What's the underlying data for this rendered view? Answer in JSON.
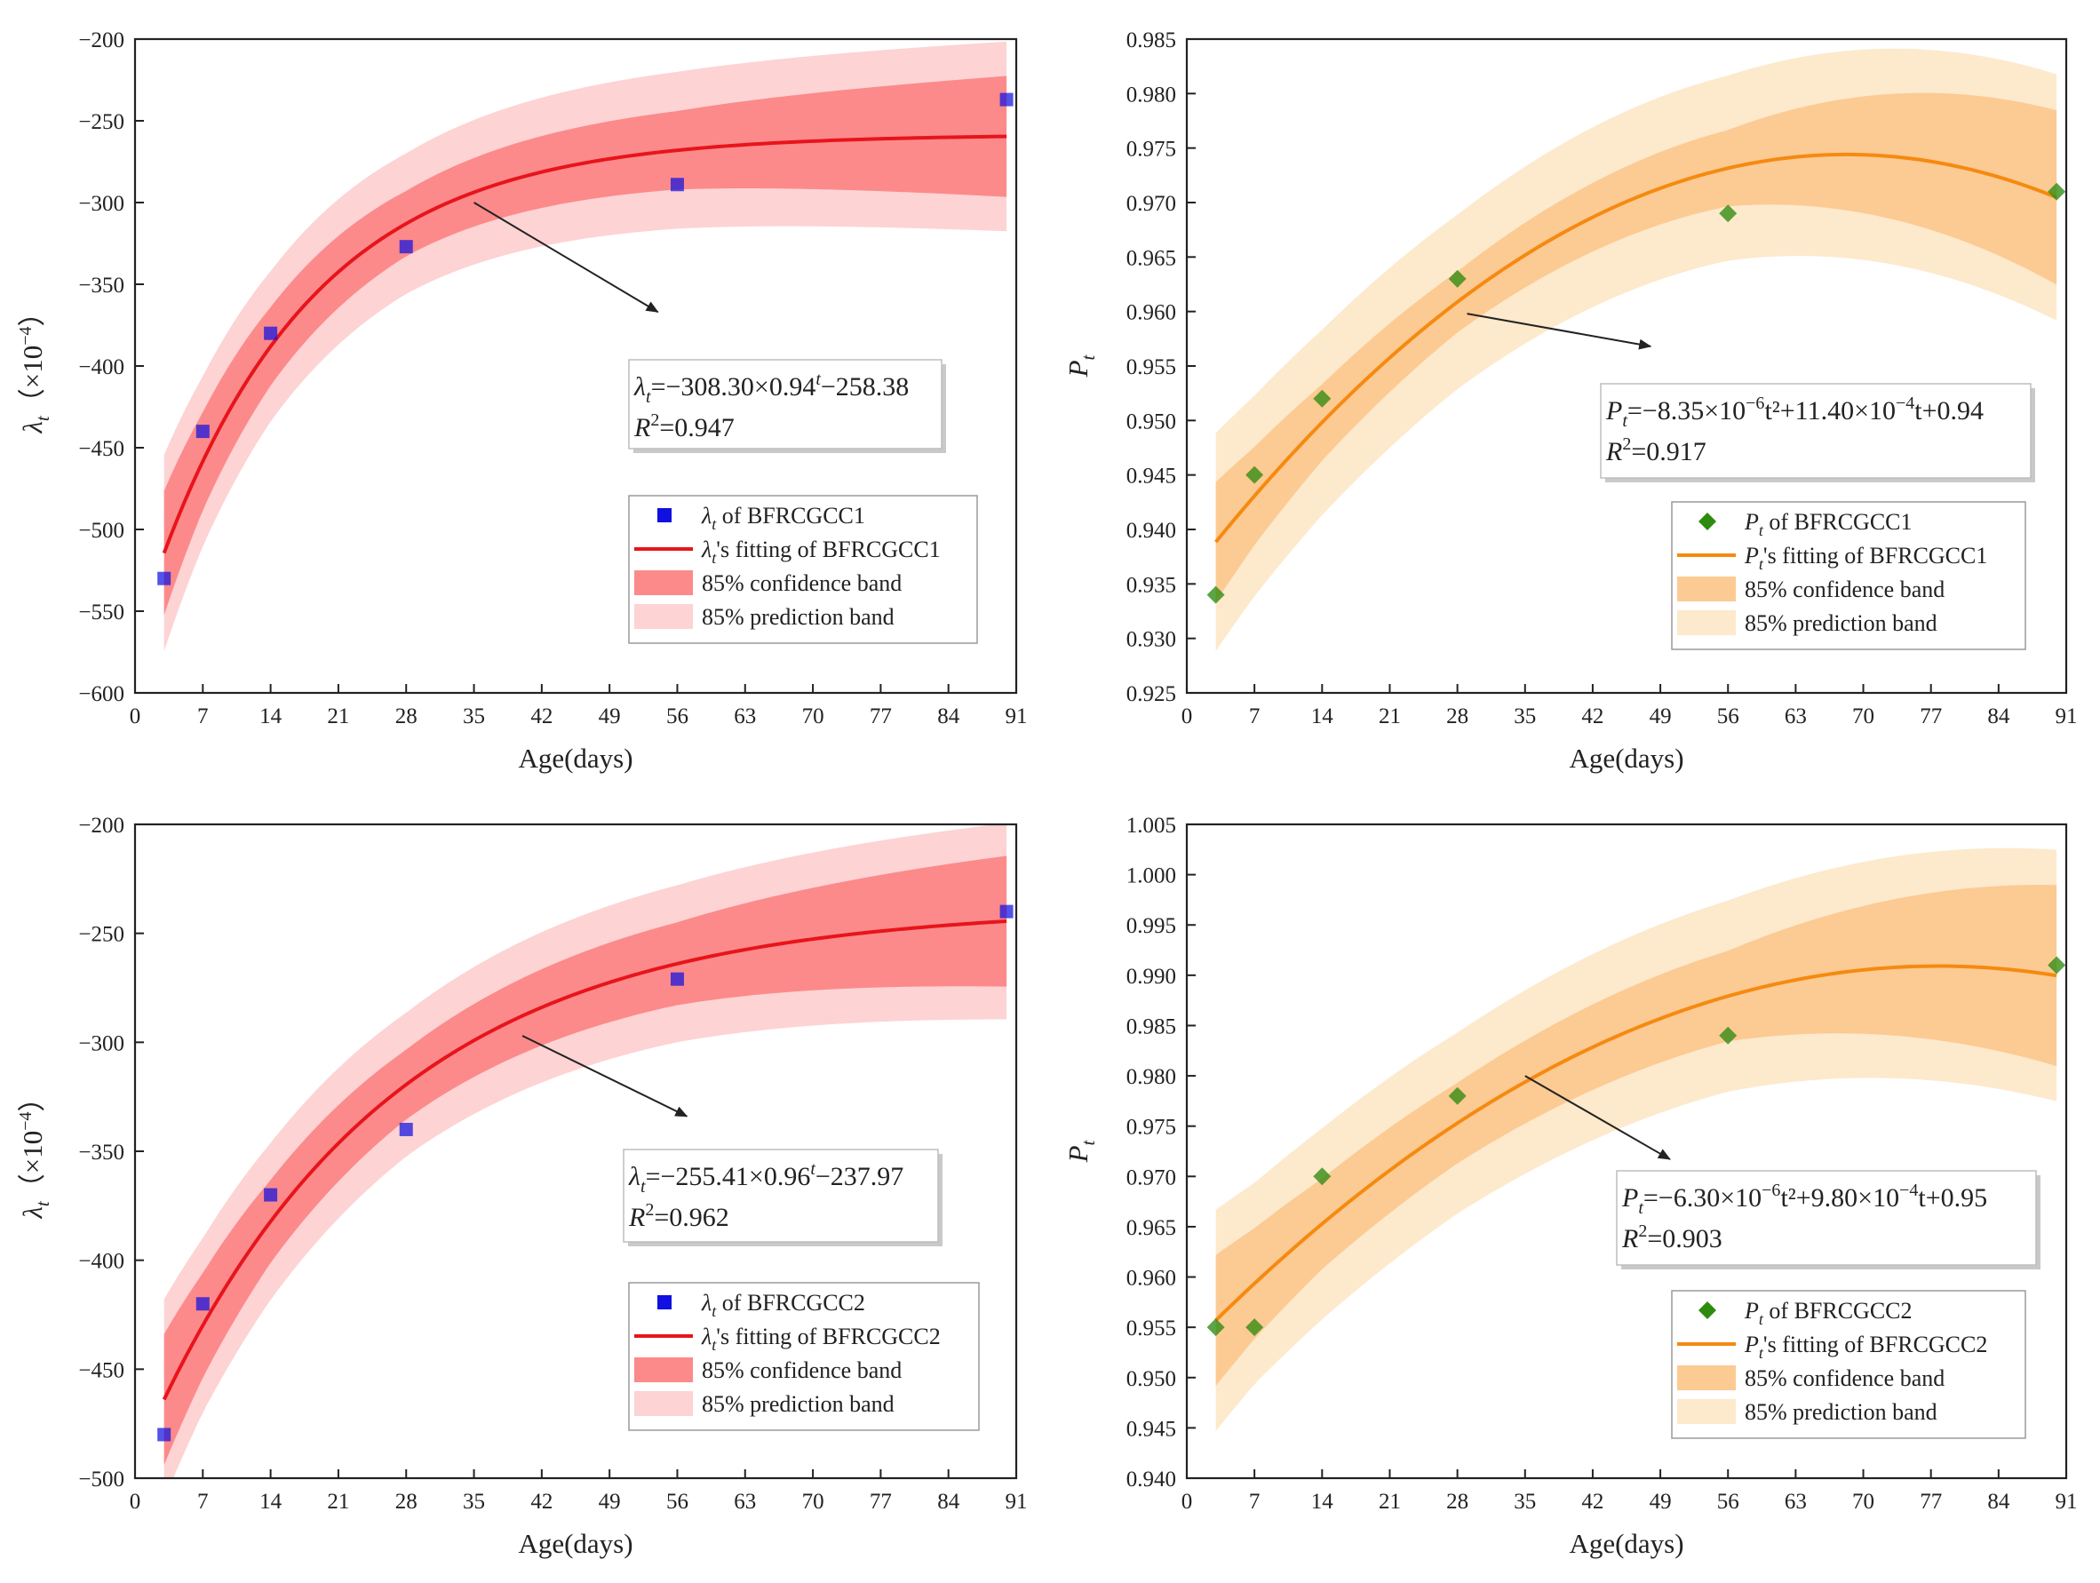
{
  "colors": {
    "red_point": "#1010e0",
    "red_line": "#e8141b",
    "red_conf": "#fc8a8b",
    "red_pred": "#fdd3d4",
    "orange_point": "#2e8b10",
    "orange_line": "#f58a10",
    "orange_conf": "#fcca93",
    "orange_pred": "#fde9cc",
    "axis": "#222222"
  },
  "x_title": "Age(days)",
  "chart_data": [
    {
      "id": "lambda-bfrcgcc1",
      "type": "scatter",
      "theme": "red",
      "marker": "square",
      "xlabel": "Age(days)",
      "ylabel_main": "λ",
      "ylabel_sub": "t",
      "ylabel_unit": "（×10",
      "ylabel_exp": "−4",
      "ylabel_close": "）",
      "xlim": [
        0,
        91
      ],
      "ylim": [
        -600,
        -200
      ],
      "xticks": [
        0,
        7,
        14,
        21,
        28,
        35,
        42,
        49,
        56,
        63,
        70,
        77,
        84,
        91
      ],
      "yticks": [
        -600,
        -550,
        -500,
        -450,
        -400,
        -350,
        -300,
        -250,
        -200
      ],
      "ytick_labels": [
        "−600",
        "−550",
        "−500",
        "−450",
        "−400",
        "−350",
        "−300",
        "−250",
        "−200"
      ],
      "ytick_decimals": 0,
      "points": {
        "x": [
          3,
          7,
          14,
          28,
          56,
          90
        ],
        "y": [
          -530,
          -440,
          -380,
          -327,
          -289,
          -237
        ]
      },
      "fit": {
        "model": "exp",
        "a": -308.3,
        "b": 0.94,
        "c": -258.38,
        "x_range": [
          3,
          90
        ]
      },
      "conf_halfwidth": [
        38,
        30,
        24,
        20,
        24,
        37
      ],
      "pred_halfwidth": [
        60,
        52,
        46,
        43,
        48,
        58
      ],
      "band_x": [
        3,
        7,
        14,
        28,
        56,
        90
      ],
      "equation": {
        "pre": "λ",
        "sub": "t",
        "mid": "=−308.30×0.94",
        "sup": "t",
        "post": "−258.38"
      },
      "r2": {
        "pre": "R",
        "sup": "2",
        "post": "=0.947"
      },
      "arrow": {
        "from": [
          35,
          -300
        ],
        "to": [
          54,
          -367
        ]
      },
      "legend": [
        {
          "kind": "point",
          "pre": "λ",
          "sub": "t",
          "post": " of BFRCGCC1"
        },
        {
          "kind": "line",
          "pre": "λ",
          "sub": "t",
          "post": "'s fitting of BFRCGCC1"
        },
        {
          "kind": "conf",
          "pre": "",
          "sub": "",
          "post": "85% confidence band"
        },
        {
          "kind": "pred",
          "pre": "",
          "sub": "",
          "post": "85% prediction band"
        }
      ]
    },
    {
      "id": "p-bfrcgcc1",
      "type": "scatter",
      "theme": "orange",
      "marker": "diamond",
      "xlabel": "Age(days)",
      "ylabel_main": "P",
      "ylabel_sub": "t",
      "ylabel_unit": "",
      "ylabel_exp": "",
      "ylabel_close": "",
      "xlim": [
        0,
        91
      ],
      "ylim": [
        0.925,
        0.985
      ],
      "xticks": [
        0,
        7,
        14,
        21,
        28,
        35,
        42,
        49,
        56,
        63,
        70,
        77,
        84,
        91
      ],
      "yticks": [
        0.925,
        0.93,
        0.935,
        0.94,
        0.945,
        0.95,
        0.955,
        0.96,
        0.965,
        0.97,
        0.975,
        0.98,
        0.985
      ],
      "ytick_labels": [
        "0.925",
        "0.930",
        "0.935",
        "0.940",
        "0.945",
        "0.950",
        "0.955",
        "0.960",
        "0.965",
        "0.970",
        "0.975",
        "0.980",
        "0.985"
      ],
      "ytick_decimals": 3,
      "points": {
        "x": [
          3,
          7,
          14,
          28,
          56,
          90
        ],
        "y": [
          0.934,
          0.945,
          0.952,
          0.963,
          0.969,
          0.971
        ]
      },
      "fit": {
        "model": "quad",
        "a": -8.35e-06,
        "b": 0.00114,
        "c": 0.9355,
        "x_range": [
          3,
          90
        ]
      },
      "conf_halfwidth": [
        0.0055,
        0.0045,
        0.0035,
        0.0028,
        0.0035,
        0.008
      ],
      "pred_halfwidth": [
        0.01,
        0.0092,
        0.0085,
        0.008,
        0.0085,
        0.0113
      ],
      "band_x": [
        3,
        7,
        14,
        28,
        56,
        90
      ],
      "equation": {
        "pre": "P",
        "sub": "t",
        "mid": "=−8.35×10",
        "sup": "−6",
        "post": "t²+11.40×10",
        "sup2": "−4",
        "post2": "t+0.94"
      },
      "r2": {
        "pre": "R",
        "sup": "2",
        "post": "=0.917"
      },
      "arrow": {
        "from": [
          29,
          0.9598
        ],
        "to": [
          48,
          0.9568
        ]
      },
      "legend": [
        {
          "kind": "point",
          "pre": "P",
          "sub": "t",
          "post": " of BFRCGCC1"
        },
        {
          "kind": "line",
          "pre": "P",
          "sub": "t",
          "post": "'s fitting of BFRCGCC1"
        },
        {
          "kind": "conf",
          "pre": "",
          "sub": "",
          "post": "85% confidence band"
        },
        {
          "kind": "pred",
          "pre": "",
          "sub": "",
          "post": "85% prediction band"
        }
      ]
    },
    {
      "id": "lambda-bfrcgcc2",
      "type": "scatter",
      "theme": "red",
      "marker": "square",
      "xlabel": "Age(days)",
      "ylabel_main": "λ",
      "ylabel_sub": "t",
      "ylabel_unit": "（×10",
      "ylabel_exp": "−4",
      "ylabel_close": "）",
      "xlim": [
        0,
        91
      ],
      "ylim": [
        -500,
        -200
      ],
      "xticks": [
        0,
        7,
        14,
        21,
        28,
        35,
        42,
        49,
        56,
        63,
        70,
        77,
        84,
        91
      ],
      "yticks": [
        -500,
        -450,
        -400,
        -350,
        -300,
        -250,
        -200
      ],
      "ytick_labels": [
        "−500",
        "−450",
        "−400",
        "−350",
        "−300",
        "−250",
        "−200"
      ],
      "ytick_decimals": 0,
      "points": {
        "x": [
          3,
          7,
          14,
          28,
          56,
          90
        ],
        "y": [
          -480,
          -420,
          -370,
          -340,
          -271,
          -240
        ]
      },
      "fit": {
        "model": "exp",
        "a": -255.41,
        "b": 0.96,
        "c": -237.97,
        "x_range": [
          3,
          90
        ]
      },
      "conf_halfwidth": [
        30,
        24,
        19,
        16,
        19,
        30
      ],
      "pred_halfwidth": [
        46,
        40,
        36,
        33,
        36,
        45
      ],
      "band_x": [
        3,
        7,
        14,
        28,
        56,
        90
      ],
      "equation": {
        "pre": "λ",
        "sub": "t",
        "mid": "=−255.41×0.96",
        "sup": "t",
        "post": "−237.97"
      },
      "r2": {
        "pre": "R",
        "sup": "2",
        "post": "=0.962"
      },
      "arrow": {
        "from": [
          40,
          -297
        ],
        "to": [
          57,
          -334
        ]
      },
      "legend": [
        {
          "kind": "point",
          "pre": "λ",
          "sub": "t",
          "post": " of BFRCGCC2"
        },
        {
          "kind": "line",
          "pre": "λ",
          "sub": "t",
          "post": "'s fitting of BFRCGCC2"
        },
        {
          "kind": "conf",
          "pre": "",
          "sub": "",
          "post": "85% confidence band"
        },
        {
          "kind": "pred",
          "pre": "",
          "sub": "",
          "post": "85% prediction band"
        }
      ]
    },
    {
      "id": "p-bfrcgcc2",
      "type": "scatter",
      "theme": "orange",
      "marker": "diamond",
      "xlabel": "Age(days)",
      "ylabel_main": "P",
      "ylabel_sub": "t",
      "ylabel_unit": "",
      "ylabel_exp": "",
      "ylabel_close": "",
      "xlim": [
        0,
        91
      ],
      "ylim": [
        0.94,
        1.005
      ],
      "xticks": [
        0,
        7,
        14,
        21,
        28,
        35,
        42,
        49,
        56,
        63,
        70,
        77,
        84,
        91
      ],
      "yticks": [
        0.94,
        0.945,
        0.95,
        0.955,
        0.96,
        0.965,
        0.97,
        0.975,
        0.98,
        0.985,
        0.99,
        0.995,
        1.0,
        1.005
      ],
      "ytick_labels": [
        "0.940",
        "0.945",
        "0.950",
        "0.955",
        "0.960",
        "0.965",
        "0.970",
        "0.975",
        "0.980",
        "0.985",
        "0.990",
        "0.995",
        "1.000",
        "1.005"
      ],
      "ytick_decimals": 3,
      "points": {
        "x": [
          3,
          7,
          14,
          28,
          56,
          90
        ],
        "y": [
          0.955,
          0.955,
          0.97,
          0.978,
          0.984,
          0.991
        ]
      },
      "fit": {
        "model": "quad",
        "a": -6.3e-06,
        "b": 0.00098,
        "c": 0.9528,
        "x_range": [
          3,
          90
        ]
      },
      "conf_halfwidth": [
        0.0065,
        0.0055,
        0.0045,
        0.004,
        0.0045,
        0.009
      ],
      "pred_halfwidth": [
        0.011,
        0.01,
        0.0095,
        0.009,
        0.0095,
        0.0125
      ],
      "band_x": [
        3,
        7,
        14,
        28,
        56,
        90
      ],
      "equation": {
        "pre": "P",
        "sub": "t",
        "mid": "=−6.30×10",
        "sup": "−6",
        "post": "t²+9.80×10",
        "sup2": "−4",
        "post2": "t+0.95"
      },
      "r2": {
        "pre": "R",
        "sup": "2",
        "post": "=0.903"
      },
      "arrow": {
        "from": [
          35,
          0.98
        ],
        "to": [
          50,
          0.9717
        ]
      },
      "legend": [
        {
          "kind": "point",
          "pre": "P",
          "sub": "t",
          "post": " of BFRCGCC2"
        },
        {
          "kind": "line",
          "pre": "P",
          "sub": "t",
          "post": "'s fitting of BFRCGCC2"
        },
        {
          "kind": "conf",
          "pre": "",
          "sub": "",
          "post": "85% confidence band"
        },
        {
          "kind": "pred",
          "pre": "",
          "sub": "",
          "post": "85% prediction band"
        }
      ]
    }
  ]
}
